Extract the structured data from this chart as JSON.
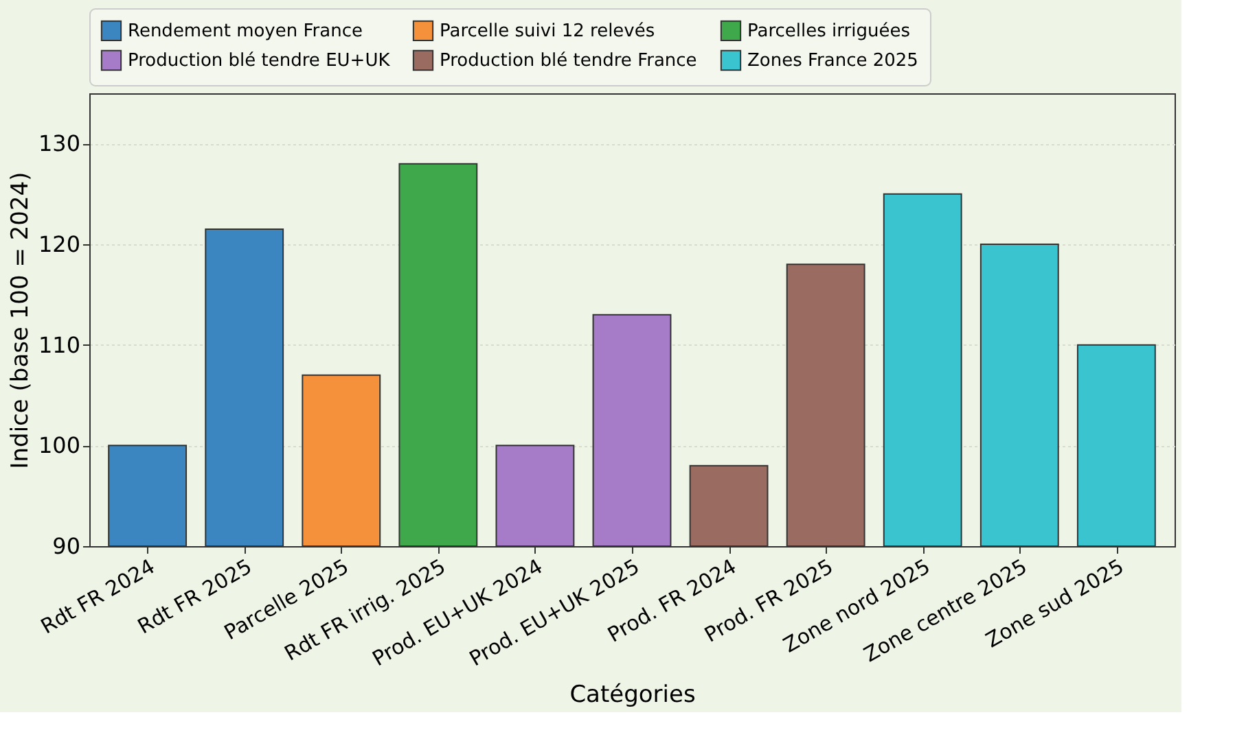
{
  "chart_data": {
    "type": "bar",
    "xlabel": "Catégories",
    "ylabel": "Indice (base 100 = 2024)",
    "categories": [
      "Rdt FR 2024",
      "Rdt FR 2025",
      "Parcelle 2025",
      "Rdt FR irrig. 2025",
      "Prod. EU+UK 2024",
      "Prod. EU+UK 2025",
      "Prod. FR 2024",
      "Prod. FR 2025",
      "Zone nord 2025",
      "Zone centre 2025",
      "Zone sud 2025"
    ],
    "series": [
      {
        "name": "Rendement moyen France",
        "color": "#3b86c0",
        "values": [
          100,
          121.5,
          null,
          null,
          null,
          null,
          null,
          null,
          null,
          null,
          null
        ]
      },
      {
        "name": "Parcelle suivi 12 relevés",
        "color": "#f5913a",
        "values": [
          null,
          null,
          107,
          null,
          null,
          null,
          null,
          null,
          null,
          null,
          null
        ]
      },
      {
        "name": "Parcelles irriguées",
        "color": "#3ea84a",
        "values": [
          null,
          null,
          null,
          128,
          null,
          null,
          null,
          null,
          null,
          null,
          null
        ]
      },
      {
        "name": "Production blé tendre EU+UK",
        "color": "#a67cc8",
        "values": [
          null,
          null,
          null,
          null,
          100,
          113,
          null,
          null,
          null,
          null,
          null
        ]
      },
      {
        "name": "Production blé tendre France",
        "color": "#9a6b60",
        "values": [
          null,
          null,
          null,
          null,
          null,
          null,
          98,
          118,
          null,
          null,
          null
        ]
      },
      {
        "name": "Zones France 2025",
        "color": "#3ac4d0",
        "values": [
          null,
          null,
          null,
          null,
          null,
          null,
          null,
          null,
          125,
          120,
          110
        ]
      }
    ],
    "ylim": [
      90,
      135
    ],
    "yticks": [
      90,
      100,
      110,
      120,
      130
    ],
    "grid": "y",
    "legend": "top"
  }
}
